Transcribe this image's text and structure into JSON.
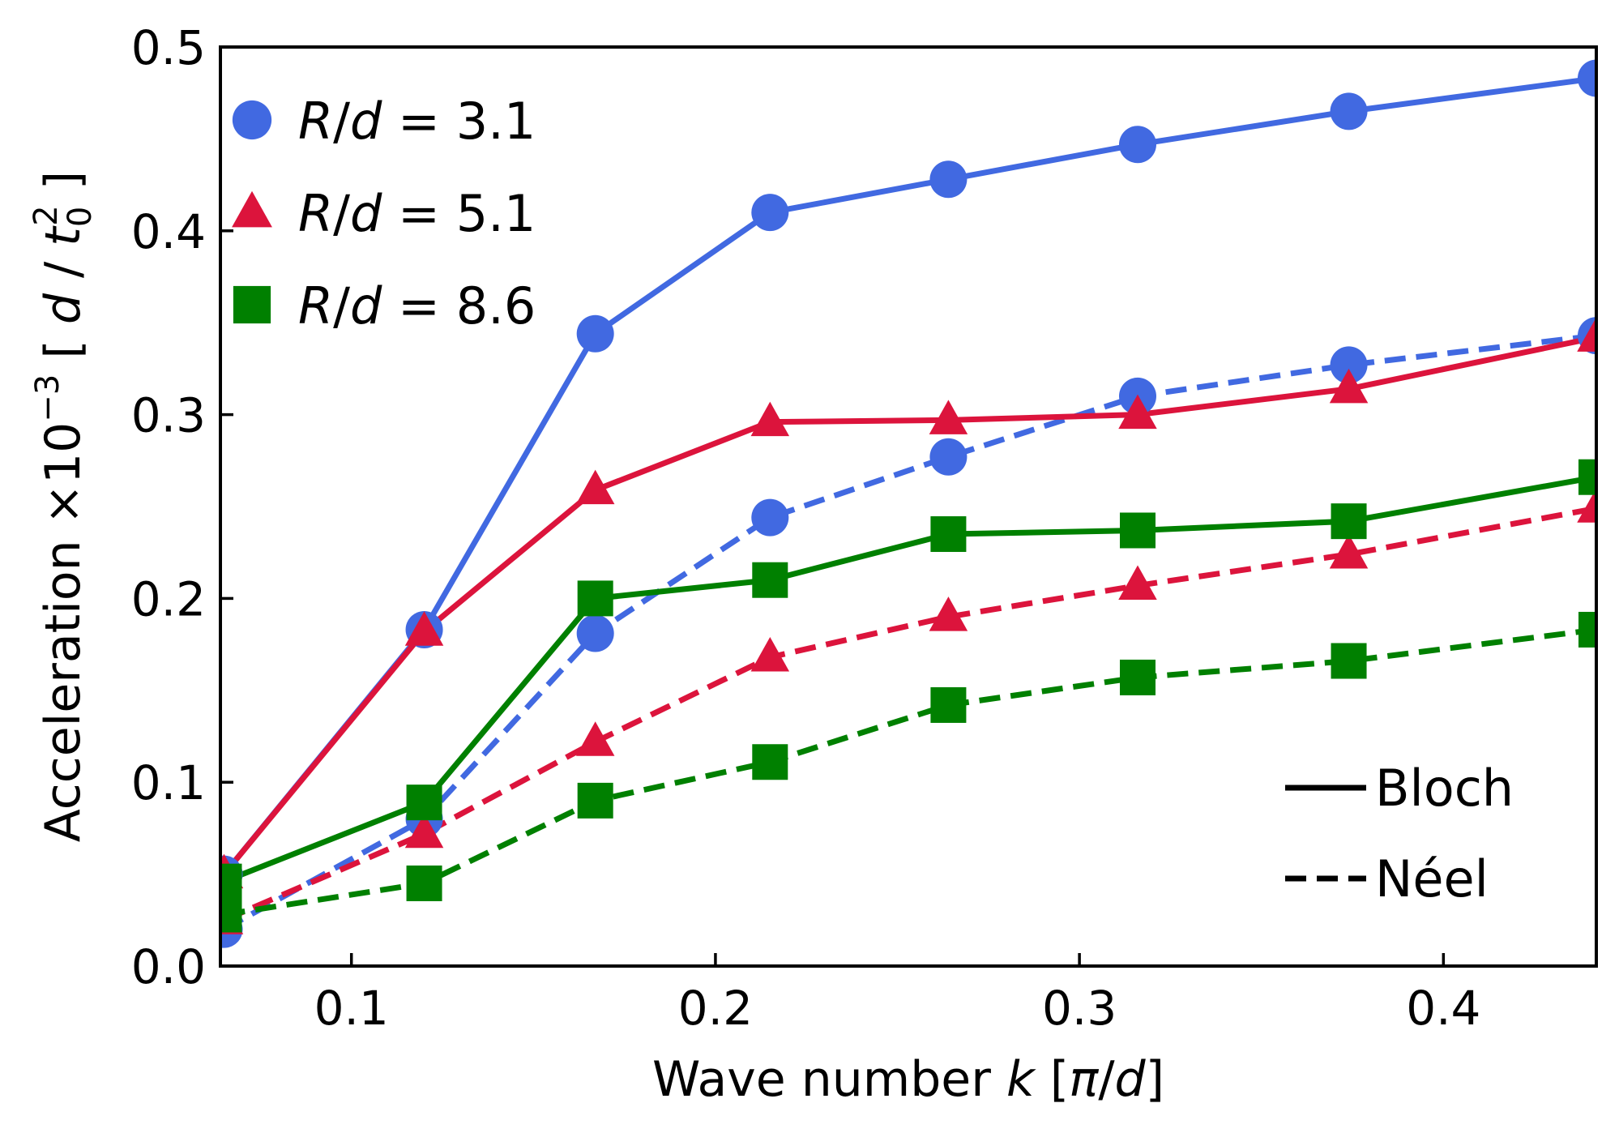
{
  "chart_data": {
    "type": "line",
    "xlabel": "Wave number k [π/d]",
    "xlabel_parts": {
      "prefix": "Wave number ",
      "var": "k",
      "suffix_open": " [",
      "pi": "π",
      "slash": "/",
      "d": "d",
      "suffix_close": "]"
    },
    "ylabel": "Acceleration ×10⁻³ [ d / t₀² ]",
    "ylabel_parts": {
      "prefix": "Acceleration ×10",
      "exp": "−3",
      "open": " [ ",
      "d": "d",
      "sep": " / ",
      "t": "t",
      "sub": "0",
      "sup": "2",
      "close": " ]"
    },
    "xlim": [
      0.064,
      0.442
    ],
    "ylim": [
      0.0,
      0.5
    ],
    "xticks": [
      0.1,
      0.2,
      0.3,
      0.4
    ],
    "xtick_labels": [
      "0.1",
      "0.2",
      "0.3",
      "0.4"
    ],
    "yticks": [
      0.0,
      0.1,
      0.2,
      0.3,
      0.4,
      0.5
    ],
    "ytick_labels": [
      "0.0",
      "0.1",
      "0.2",
      "0.3",
      "0.4",
      "0.5"
    ],
    "x": [
      0.065,
      0.12,
      0.167,
      0.215,
      0.264,
      0.316,
      0.374,
      0.442
    ],
    "series": [
      {
        "name": "R/d = 3.1 Bloch",
        "group": "R/d = 3.1",
        "wall": "Bloch",
        "marker": "circle",
        "color": "#4169e1",
        "dash": "solid",
        "values": [
          0.05,
          0.183,
          0.344,
          0.41,
          0.428,
          0.447,
          0.465,
          0.483
        ]
      },
      {
        "name": "R/d = 3.1 Néel",
        "group": "R/d = 3.1",
        "wall": "Néel",
        "marker": "circle",
        "color": "#4169e1",
        "dash": "dashed",
        "values": [
          0.02,
          0.08,
          0.181,
          0.244,
          0.277,
          0.31,
          0.327,
          0.343
        ]
      },
      {
        "name": "R/d = 5.1 Bloch",
        "group": "R/d = 5.1",
        "wall": "Bloch",
        "marker": "triangle",
        "color": "#dc143c",
        "dash": "solid",
        "values": [
          0.05,
          0.182,
          0.259,
          0.296,
          0.297,
          0.3,
          0.314,
          0.342
        ]
      },
      {
        "name": "R/d = 5.1 Néel",
        "group": "R/d = 5.1",
        "wall": "Néel",
        "marker": "triangle",
        "color": "#dc143c",
        "dash": "dashed",
        "values": [
          0.025,
          0.072,
          0.122,
          0.168,
          0.19,
          0.207,
          0.224,
          0.249
        ]
      },
      {
        "name": "R/d = 8.6 Bloch",
        "group": "R/d = 8.6",
        "wall": "Bloch",
        "marker": "square",
        "color": "#008000",
        "dash": "solid",
        "values": [
          0.046,
          0.089,
          0.2,
          0.21,
          0.235,
          0.237,
          0.242,
          0.266
        ]
      },
      {
        "name": "R/d = 8.6 Néel",
        "group": "R/d = 8.6",
        "wall": "Néel",
        "marker": "square",
        "color": "#008000",
        "dash": "dashed",
        "values": [
          0.028,
          0.045,
          0.09,
          0.111,
          0.142,
          0.157,
          0.166,
          0.183
        ]
      }
    ],
    "legend_markers": [
      {
        "marker": "circle",
        "color": "#4169e1",
        "var_r": "R",
        "slash": "/",
        "var_d": "d",
        "eq": " = 3.1"
      },
      {
        "marker": "triangle",
        "color": "#dc143c",
        "var_r": "R",
        "slash": "/",
        "var_d": "d",
        "eq": " = 5.1"
      },
      {
        "marker": "square",
        "color": "#008000",
        "var_r": "R",
        "slash": "/",
        "var_d": "d",
        "eq": " = 8.6"
      }
    ],
    "legend_markers_location": "upper-left",
    "legend_lines": [
      {
        "label": "Bloch",
        "dash": "solid"
      },
      {
        "label": "Néel",
        "dash": "dashed"
      }
    ],
    "legend_lines_location": "lower-right",
    "grid": false
  }
}
